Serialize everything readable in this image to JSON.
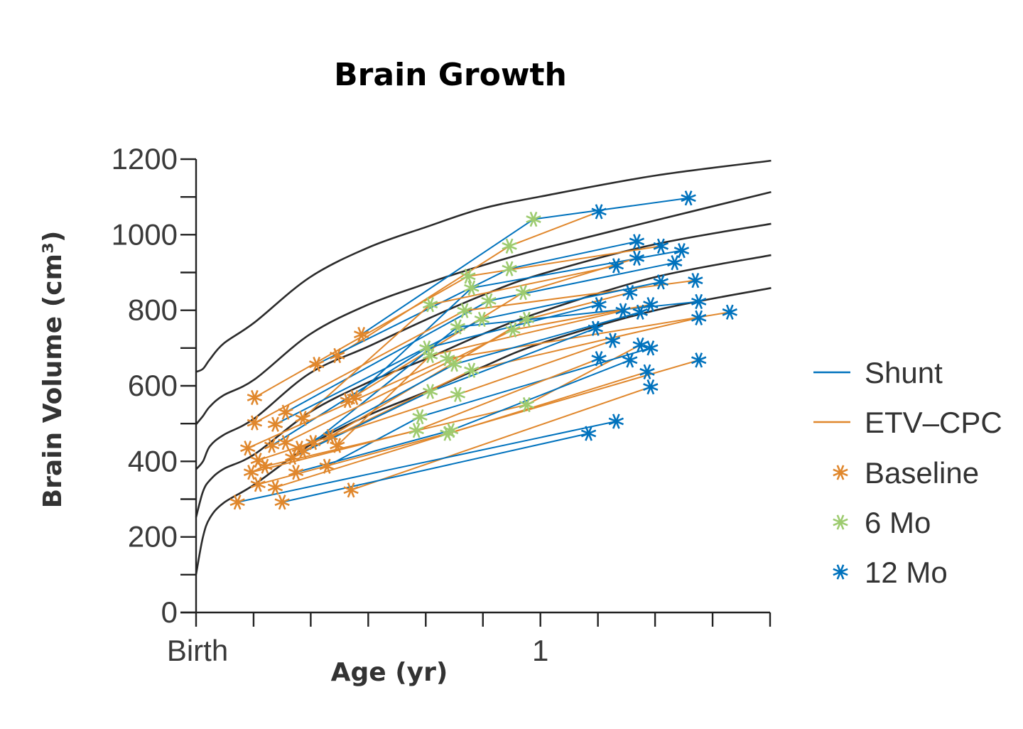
{
  "chart_data": {
    "type": "line",
    "title": "Brain Growth",
    "xlabel": "Age (yr)",
    "ylabel": "Brain Volume (cm³)",
    "xlim": [
      0,
      1.667
    ],
    "ylim": [
      0,
      1200
    ],
    "x_ticks": [
      0,
      0.167,
      0.333,
      0.5,
      0.667,
      0.833,
      1,
      1.167,
      1.333,
      1.5,
      1.667
    ],
    "x_tick_labels": [
      {
        "value": 0,
        "label": "Birth"
      },
      {
        "value": 1,
        "label": "1"
      }
    ],
    "y_ticks": [
      0,
      200,
      400,
      600,
      800,
      1000,
      1200
    ],
    "y_tick_labels": [
      "0",
      "200",
      "400",
      "600",
      "800",
      "1000",
      "1200"
    ],
    "y_minor_ticks": [
      100,
      300,
      500,
      700,
      900,
      1100
    ],
    "grid": false,
    "legend": {
      "placement": "right",
      "entries": [
        {
          "label": "Shunt",
          "kind": "line",
          "color": "#0072bd"
        },
        {
          "label": "ETV–CPC",
          "kind": "line",
          "color": "#e0872c"
        },
        {
          "label": "Baseline",
          "kind": "marker",
          "color": "#e0872c"
        },
        {
          "label": "6 Mo",
          "kind": "marker",
          "color": "#9dcb6f"
        },
        {
          "label": "12 Mo",
          "kind": "marker",
          "color": "#0072bd"
        }
      ]
    },
    "colors": {
      "Shunt": "#0072bd",
      "ETV-CPC": "#e0872c",
      "baseline": "#e0872c",
      "m6": "#9dcb6f",
      "m12": "#0072bd",
      "reference": "#2b2b2b"
    },
    "reference_curves": {
      "x": [
        0,
        0.02,
        0.04,
        0.08,
        0.17,
        0.33,
        0.5,
        0.67,
        0.83,
        1,
        1.33,
        1.67
      ],
      "series": [
        {
          "values": [
            637,
            645,
            670,
            712,
            768,
            887,
            966,
            1021,
            1069,
            1101,
            1156,
            1196
          ]
        },
        {
          "values": [
            498,
            520,
            545,
            575,
            617,
            736,
            815,
            871,
            918,
            962,
            1037,
            1113
          ]
        },
        {
          "values": [
            379,
            400,
            440,
            470,
            514,
            633,
            704,
            776,
            839,
            895,
            974,
            1029
          ]
        },
        {
          "values": [
            252,
            320,
            350,
            380,
            419,
            530,
            609,
            672,
            736,
            795,
            887,
            946
          ]
        },
        {
          "values": [
            101,
            200,
            250,
            290,
            339,
            443,
            522,
            585,
            649,
            712,
            799,
            859
          ]
        }
      ]
    },
    "trajectories": [
      {
        "group": "Shunt",
        "baseline": [
          0.48,
          736
        ],
        "m6": [
          0.98,
          1041
        ],
        "m12": [
          1.43,
          1097
        ]
      },
      {
        "group": "ETV-CPC",
        "baseline": [
          0.41,
          680
        ],
        "m6": [
          0.91,
          970
        ],
        "m12": [
          1.17,
          1061
        ]
      },
      {
        "group": "Shunt",
        "baseline": [
          0.35,
          657
        ],
        "m6": [
          0.91,
          910
        ],
        "m12": [
          1.28,
          982
        ]
      },
      {
        "group": "ETV-CPC",
        "baseline": [
          0.17,
          569
        ],
        "m6": [
          0.79,
          890
        ],
        "m12": [
          1.35,
          970
        ]
      },
      {
        "group": "Shunt",
        "baseline": [
          0.46,
          569
        ],
        "m6": [
          0.8,
          859
        ],
        "m12": [
          1.41,
          958
        ]
      },
      {
        "group": "ETV-CPC",
        "baseline": [
          0.44,
          561
        ],
        "m6": [
          0.95,
          847
        ],
        "m12": [
          1.28,
          938
        ]
      },
      {
        "group": "Shunt",
        "baseline": [
          0.26,
          530
        ],
        "m6": [
          0.85,
          825
        ],
        "m12": [
          1.39,
          926
        ]
      },
      {
        "group": "ETV-CPC",
        "baseline": [
          0.31,
          514
        ],
        "m6": [
          0.68,
          815
        ],
        "m12": [
          1.22,
          918
        ]
      },
      {
        "group": "ETV-CPC",
        "baseline": [
          0.17,
          502
        ],
        "m6": [
          0.78,
          799
        ],
        "m12": [
          1.45,
          879
        ]
      },
      {
        "group": "Shunt",
        "baseline": [
          0.23,
          498
        ],
        "m6": [
          0.83,
          776
        ],
        "m12": [
          1.35,
          875
        ]
      },
      {
        "group": "ETV-CPC",
        "baseline": [
          0.39,
          466
        ],
        "m6": [
          0.96,
          776
        ],
        "m12": [
          1.26,
          847
        ]
      },
      {
        "group": "Shunt",
        "baseline": [
          0.34,
          450
        ],
        "m6": [
          0.76,
          756
        ],
        "m12": [
          1.46,
          823
        ]
      },
      {
        "group": "ETV-CPC",
        "baseline": [
          0.26,
          450
        ],
        "m6": [
          0.92,
          748
        ],
        "m12": [
          1.32,
          815
        ]
      },
      {
        "group": "Shunt",
        "baseline": [
          0.22,
          442
        ],
        "m6": [
          0.67,
          700
        ],
        "m12": [
          1.17,
          815
        ]
      },
      {
        "group": "ETV-CPC",
        "baseline": [
          0.41,
          442
        ],
        "m6": [
          0.68,
          680
        ],
        "m12": [
          1.24,
          799
        ]
      },
      {
        "group": "ETV-CPC",
        "baseline": [
          0.15,
          435
        ],
        "m6": [
          0.73,
          672
        ],
        "m12": [
          1.55,
          795
        ]
      },
      {
        "group": "Shunt",
        "baseline": [
          0.3,
          435
        ],
        "m6": [
          0.75,
          657
        ],
        "m12": [
          1.29,
          795
        ]
      },
      {
        "group": "ETV-CPC",
        "baseline": [
          0.31,
          427
        ],
        "m6": [
          0.8,
          641
        ],
        "m12": [
          1.46,
          780
        ]
      },
      {
        "group": "Shunt",
        "baseline": [
          0.28,
          411
        ],
        "m6": [
          0.68,
          585
        ],
        "m12": [
          1.16,
          752
        ]
      },
      {
        "group": "ETV-CPC",
        "baseline": [
          0.18,
          403
        ],
        "m6": [
          0.76,
          577
        ],
        "m12": [
          1.21,
          720
        ]
      },
      {
        "group": "ETV-CPC",
        "baseline": [
          0.2,
          387
        ],
        "m6": [
          0.96,
          550
        ],
        "m12": [
          1.29,
          708
        ]
      },
      {
        "group": "Shunt",
        "baseline": [
          0.38,
          387
        ],
        "m6": [
          0.65,
          518
        ],
        "m12": [
          1.32,
          700
        ]
      },
      {
        "group": "ETV-CPC",
        "baseline": [
          0.16,
          371
        ],
        "m6": [
          0.64,
          482
        ],
        "m12": [
          1.17,
          672
        ]
      },
      {
        "group": "Shunt",
        "baseline": [
          0.29,
          371
        ],
        "m6": [
          0.74,
          482
        ],
        "m12": [
          1.26,
          668
        ]
      },
      {
        "group": "ETV-CPC",
        "baseline": [
          0.18,
          339
        ],
        "m6": [
          0.73,
          474
        ],
        "m12": [
          1.46,
          668
        ]
      },
      {
        "group": "ETV-CPC",
        "baseline": [
          0.23,
          331
        ],
        "m6": null,
        "m12": [
          1.31,
          637
        ]
      },
      {
        "group": "ETV-CPC",
        "baseline": [
          0.45,
          324
        ],
        "m6": null,
        "m12": [
          1.32,
          597
        ]
      },
      {
        "group": "Shunt",
        "baseline": [
          0.12,
          292
        ],
        "m6": null,
        "m12": [
          1.22,
          506
        ]
      },
      {
        "group": "Shunt",
        "baseline": [
          0.25,
          292
        ],
        "m6": null,
        "m12": [
          1.14,
          474
        ]
      }
    ]
  }
}
